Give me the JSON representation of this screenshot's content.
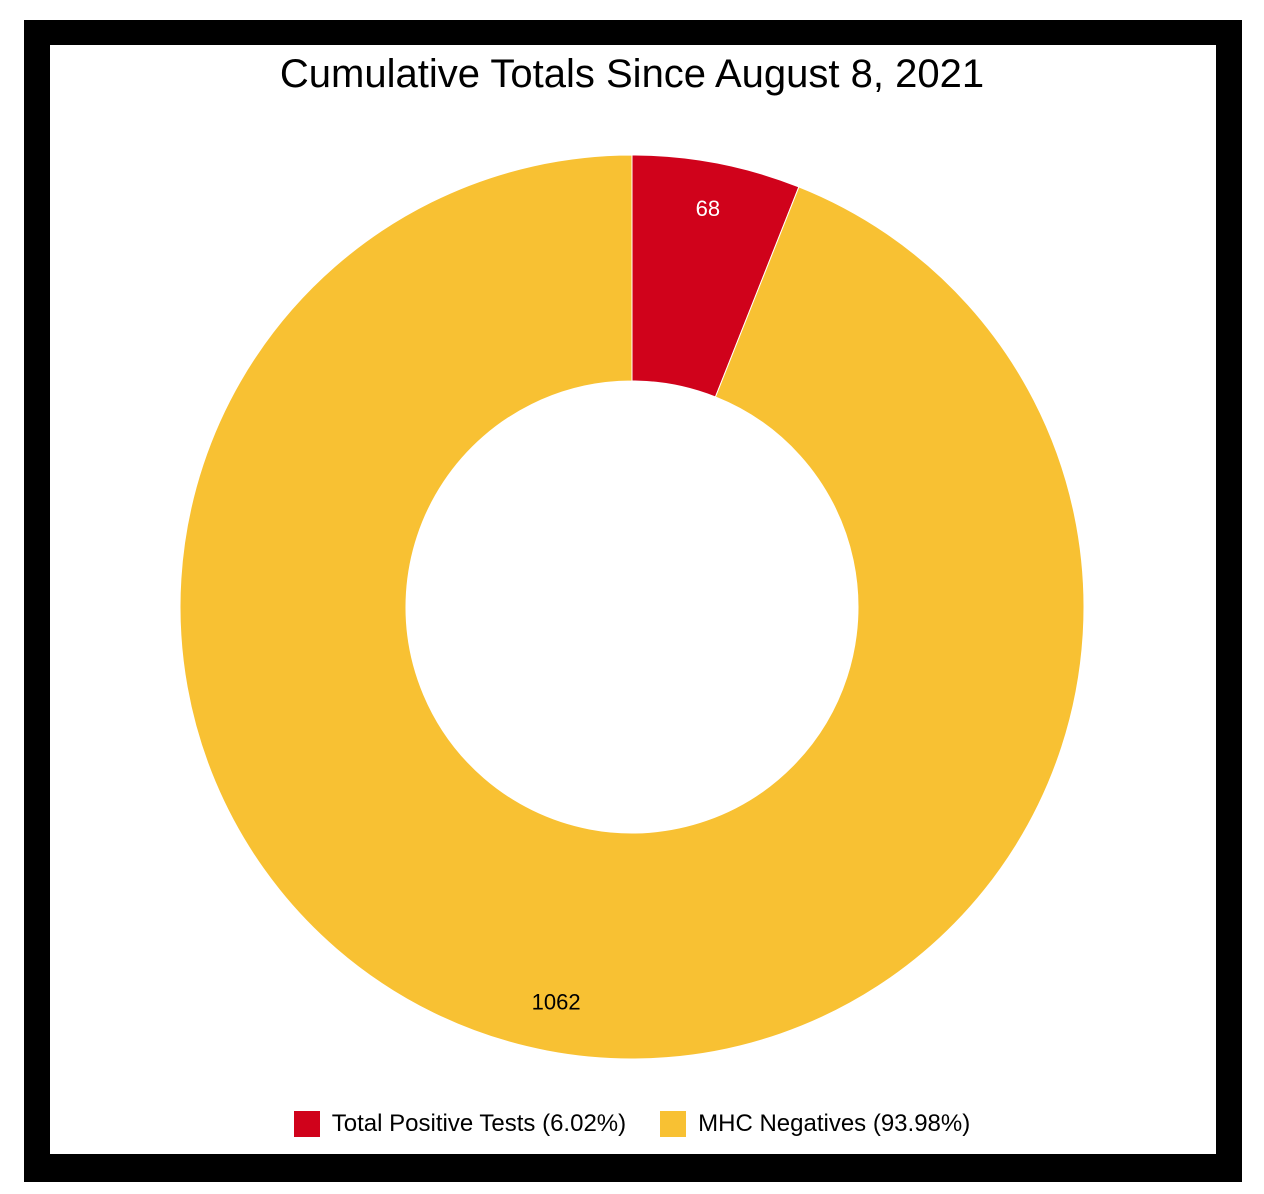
{
  "chart_data": {
    "type": "pie",
    "variant": "donut",
    "title": "Cumulative Totals Since August 8, 2021",
    "slices": [
      {
        "label": "68",
        "value": 68,
        "color": "#d0021b",
        "label_color": "#ffffff"
      },
      {
        "label": "1062",
        "value": 1062,
        "color": "#f8c133",
        "label_color": "#000000"
      }
    ],
    "legend": {
      "placement": "bottom",
      "entries": [
        {
          "label": "Total Positive Tests (6.02%)",
          "color": "#d0021b"
        },
        {
          "label": "MHC Negatives (93.98%)",
          "color": "#f8c133"
        }
      ]
    }
  }
}
